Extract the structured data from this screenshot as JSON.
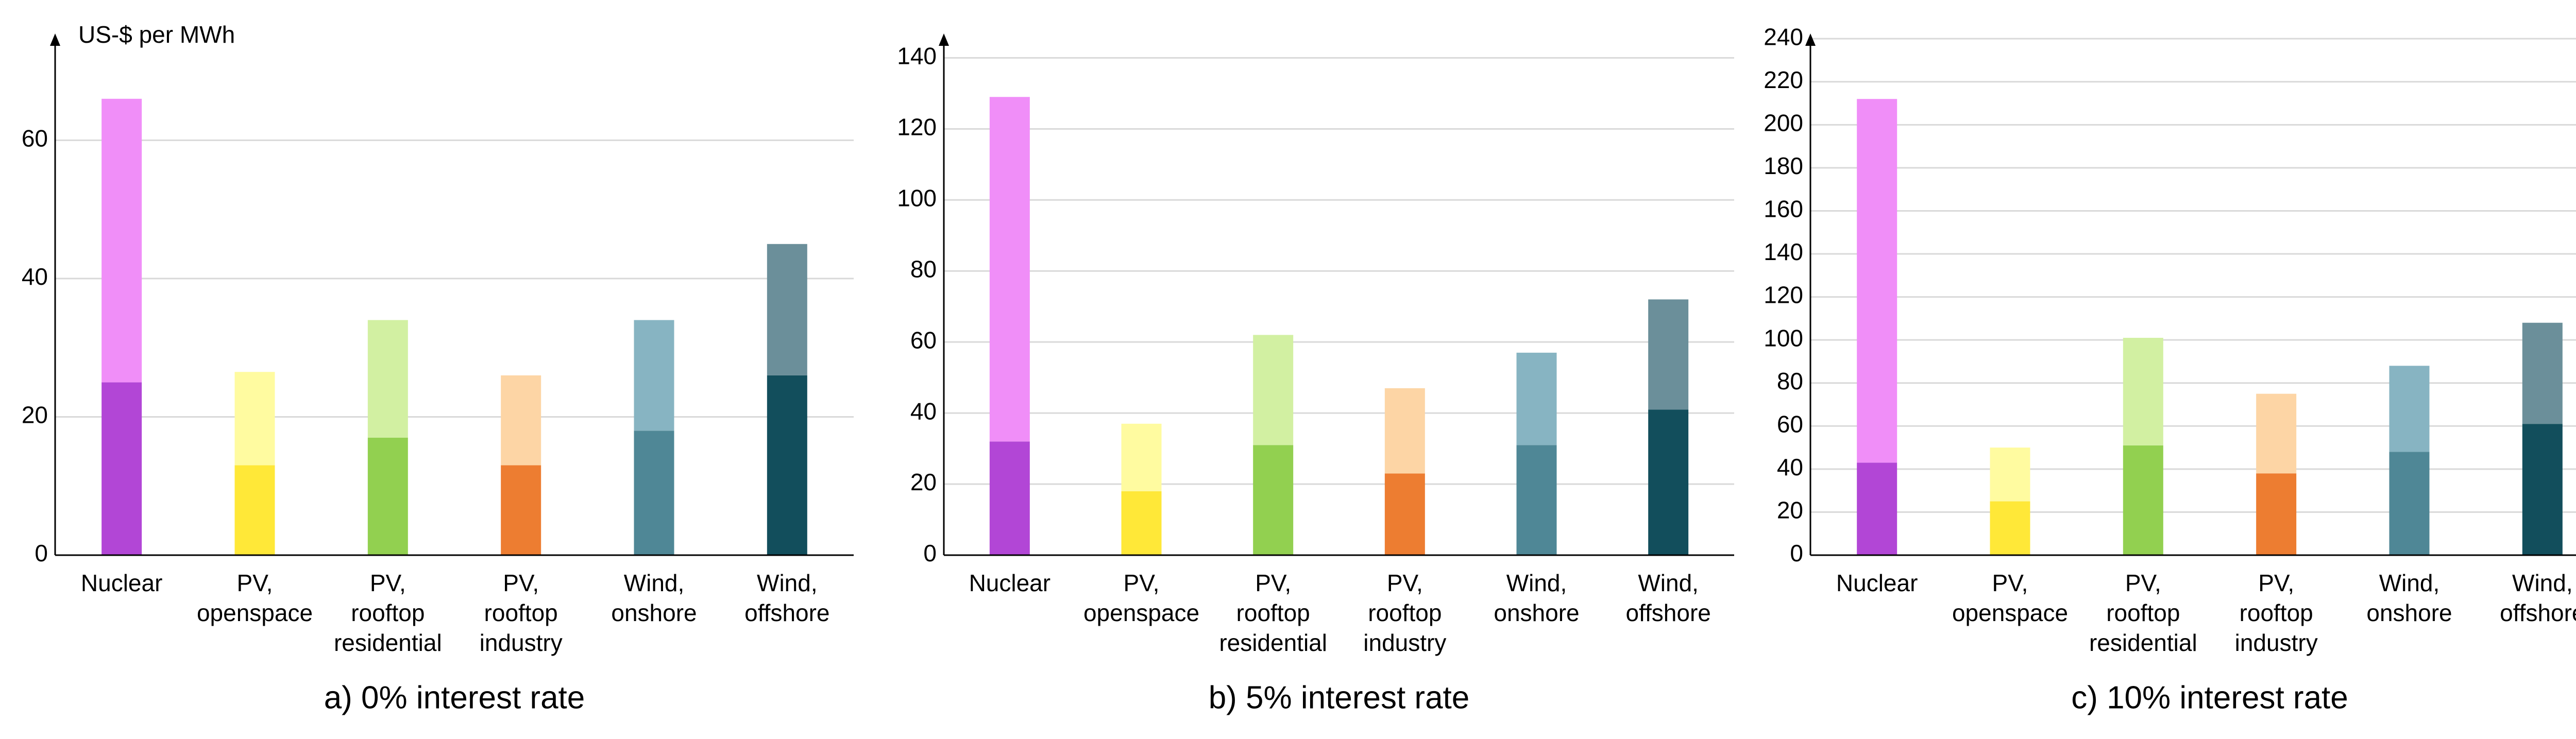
{
  "chart_data": [
    {
      "type": "stacked-bar",
      "caption": "a) 0% interest rate",
      "ylabel": "US-$ per MWh",
      "categories": [
        [
          "Nuclear"
        ],
        [
          "PV,",
          "openspace"
        ],
        [
          "PV,",
          "rooftop",
          "residential"
        ],
        [
          "PV,",
          "rooftop",
          "industry"
        ],
        [
          "Wind,",
          "onshore"
        ],
        [
          "Wind,",
          "offshore"
        ]
      ],
      "series": [
        {
          "values": [
            25,
            13,
            17,
            13,
            18,
            26
          ],
          "colors": [
            "#b246d6",
            "#ffe838",
            "#92d050",
            "#ed7d31",
            "#4f8796",
            "#124e5c"
          ]
        },
        {
          "values": [
            41,
            13.5,
            17,
            13,
            16,
            19
          ],
          "colors": [
            "#f08ef8",
            "#fffba0",
            "#d2f0a2",
            "#fdd5a5",
            "#87b4c2",
            "#6b8f9a"
          ]
        }
      ],
      "ylim": [
        0,
        75
      ],
      "yticks": [
        0,
        20,
        40,
        60
      ],
      "grid": true
    },
    {
      "type": "stacked-bar",
      "caption": "b) 5% interest rate",
      "categories": [
        [
          "Nuclear"
        ],
        [
          "PV,",
          "openspace"
        ],
        [
          "PV,",
          "rooftop",
          "residential"
        ],
        [
          "PV,",
          "rooftop",
          "industry"
        ],
        [
          "Wind,",
          "onshore"
        ],
        [
          "Wind,",
          "offshore"
        ]
      ],
      "series": [
        {
          "values": [
            32,
            18,
            31,
            23,
            31,
            41
          ],
          "colors": [
            "#b246d6",
            "#ffe838",
            "#92d050",
            "#ed7d31",
            "#4f8796",
            "#124e5c"
          ]
        },
        {
          "values": [
            97,
            19,
            31,
            24,
            26,
            31
          ],
          "colors": [
            "#f08ef8",
            "#fffba0",
            "#d2f0a2",
            "#fdd5a5",
            "#87b4c2",
            "#6b8f9a"
          ]
        }
      ],
      "ylim": [
        0,
        146
      ],
      "yticks": [
        0,
        20,
        40,
        60,
        80,
        100,
        120,
        140
      ],
      "grid": true
    },
    {
      "type": "stacked-bar",
      "caption": "c) 10% interest rate",
      "categories": [
        [
          "Nuclear"
        ],
        [
          "PV,",
          "openspace"
        ],
        [
          "PV,",
          "rooftop",
          "residential"
        ],
        [
          "PV,",
          "rooftop",
          "industry"
        ],
        [
          "Wind,",
          "onshore"
        ],
        [
          "Wind,",
          "offshore"
        ]
      ],
      "series": [
        {
          "values": [
            43,
            25,
            51,
            38,
            48,
            61
          ],
          "colors": [
            "#b246d6",
            "#ffe838",
            "#92d050",
            "#ed7d31",
            "#4f8796",
            "#124e5c"
          ]
        },
        {
          "values": [
            169,
            25,
            50,
            37,
            40,
            47
          ],
          "colors": [
            "#f08ef8",
            "#fffba0",
            "#d2f0a2",
            "#fdd5a5",
            "#87b4c2",
            "#6b8f9a"
          ]
        }
      ],
      "ylim": [
        0,
        241
      ],
      "yticks": [
        0,
        20,
        40,
        60,
        80,
        100,
        120,
        140,
        160,
        180,
        200,
        220,
        240
      ],
      "grid": true
    }
  ]
}
